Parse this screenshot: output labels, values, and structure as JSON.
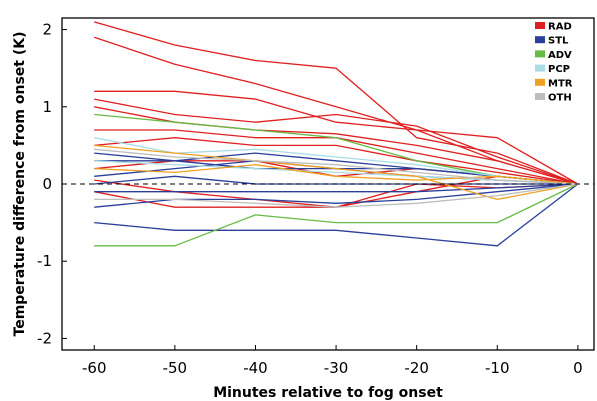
{
  "chart_data": {
    "type": "line",
    "xlabel": "Minutes relative to fog onset",
    "ylabel": "Temperature difference from onset (K)",
    "xlim": [
      -64,
      2
    ],
    "ylim": [
      -2.15,
      2.15
    ],
    "xticks": [
      -60,
      -50,
      -40,
      -30,
      -20,
      -10,
      0
    ],
    "xtick_labels": [
      "-60",
      "-50",
      "-40",
      "-30",
      "-20",
      "-10",
      "0"
    ],
    "yticks": [
      -2,
      -1,
      0,
      1,
      2
    ],
    "ytick_labels": [
      "-2",
      "-1",
      "0",
      "1",
      "2"
    ],
    "grid": false,
    "reference_line": {
      "y": 0,
      "style": "dashed"
    },
    "legend": {
      "placement": "top-right",
      "entries": [
        {
          "name": "RAD",
          "color": "#e02020"
        },
        {
          "name": "STL",
          "color": "#2a3f9a"
        },
        {
          "name": "ADV",
          "color": "#66bb44"
        },
        {
          "name": "PCP",
          "color": "#a8dde6"
        },
        {
          "name": "MTR",
          "color": "#f0a020"
        },
        {
          "name": "OTH",
          "color": "#bdbdbd"
        }
      ]
    },
    "x": [
      -60,
      -50,
      -40,
      -30,
      -20,
      -10,
      0
    ],
    "series": [
      {
        "group": "RAD",
        "values": [
          2.1,
          1.8,
          1.6,
          1.5,
          0.6,
          0.4,
          0.0
        ]
      },
      {
        "group": "RAD",
        "values": [
          1.9,
          1.55,
          1.3,
          1.0,
          0.7,
          0.3,
          0.0
        ]
      },
      {
        "group": "RAD",
        "values": [
          1.2,
          1.2,
          1.1,
          0.8,
          0.7,
          0.6,
          0.0
        ]
      },
      {
        "group": "RAD",
        "values": [
          1.1,
          0.9,
          0.8,
          0.9,
          0.75,
          0.35,
          0.0
        ]
      },
      {
        "group": "RAD",
        "values": [
          1.0,
          0.8,
          0.7,
          0.65,
          0.5,
          0.3,
          0.0
        ]
      },
      {
        "group": "RAD",
        "values": [
          0.7,
          0.7,
          0.6,
          0.6,
          0.4,
          0.2,
          0.0
        ]
      },
      {
        "group": "RAD",
        "values": [
          0.5,
          0.6,
          0.5,
          0.5,
          0.3,
          0.15,
          0.0
        ]
      },
      {
        "group": "RAD",
        "values": [
          0.2,
          0.3,
          0.3,
          0.1,
          0.2,
          0.1,
          0.0
        ]
      },
      {
        "group": "RAD",
        "values": [
          0.05,
          -0.1,
          -0.2,
          -0.3,
          -0.1,
          0.1,
          0.0
        ]
      },
      {
        "group": "RAD",
        "values": [
          -0.1,
          -0.3,
          -0.3,
          -0.3,
          0.0,
          -0.05,
          0.0
        ]
      },
      {
        "group": "STL",
        "values": [
          0.4,
          0.3,
          0.4,
          0.3,
          0.2,
          0.1,
          0.0
        ]
      },
      {
        "group": "STL",
        "values": [
          0.3,
          0.3,
          0.2,
          0.2,
          0.2,
          0.1,
          0.0
        ]
      },
      {
        "group": "STL",
        "values": [
          0.1,
          0.2,
          0.3,
          0.2,
          0.1,
          0.05,
          0.0
        ]
      },
      {
        "group": "STL",
        "values": [
          0.0,
          0.1,
          0.0,
          0.0,
          0.0,
          0.0,
          0.0
        ]
      },
      {
        "group": "STL",
        "values": [
          -0.1,
          -0.1,
          -0.1,
          -0.1,
          -0.1,
          -0.05,
          0.0
        ]
      },
      {
        "group": "STL",
        "values": [
          -0.3,
          -0.2,
          -0.2,
          -0.25,
          -0.2,
          -0.1,
          0.0
        ]
      },
      {
        "group": "STL",
        "values": [
          -0.5,
          -0.6,
          -0.6,
          -0.6,
          -0.7,
          -0.8,
          0.0
        ]
      },
      {
        "group": "ADV",
        "values": [
          0.9,
          0.8,
          0.7,
          0.6,
          0.3,
          0.1,
          0.0
        ]
      },
      {
        "group": "ADV",
        "values": [
          -0.8,
          -0.8,
          -0.4,
          -0.5,
          -0.5,
          -0.5,
          0.0
        ]
      },
      {
        "group": "PCP",
        "values": [
          0.6,
          0.4,
          0.45,
          0.35,
          0.25,
          0.1,
          0.0
        ]
      },
      {
        "group": "PCP",
        "values": [
          0.3,
          0.25,
          0.2,
          0.15,
          0.1,
          0.05,
          0.0
        ]
      },
      {
        "group": "MTR",
        "values": [
          0.5,
          0.4,
          0.3,
          0.2,
          0.1,
          -0.2,
          0.0
        ]
      },
      {
        "group": "MTR",
        "values": [
          0.2,
          0.15,
          0.25,
          0.1,
          0.05,
          0.1,
          0.0
        ]
      },
      {
        "group": "OTH",
        "values": [
          0.45,
          0.35,
          0.3,
          0.25,
          0.15,
          0.05,
          0.0
        ]
      },
      {
        "group": "OTH",
        "values": [
          -0.2,
          -0.2,
          -0.25,
          -0.3,
          -0.25,
          -0.15,
          0.0
        ]
      }
    ]
  }
}
